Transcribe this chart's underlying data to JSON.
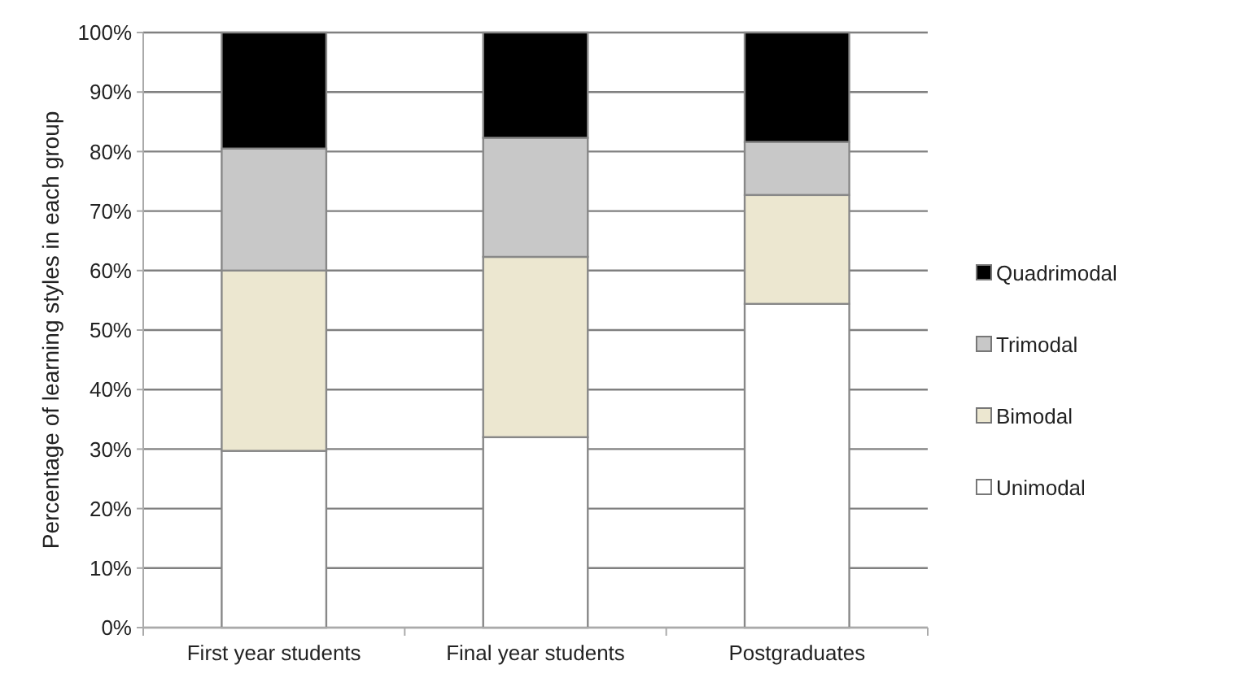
{
  "chart_data": {
    "type": "bar",
    "stacked": true,
    "ylabel": "Percentage of learning styles in each group",
    "categories": [
      "First year students",
      "Final year students",
      "Postgraduates"
    ],
    "series": [
      {
        "name": "Unimodal",
        "color": "#ffffff",
        "values": [
          29.7,
          32,
          54.4
        ]
      },
      {
        "name": "Bimodal",
        "color": "#ece7d0",
        "values": [
          30.3,
          30.3,
          18.3
        ]
      },
      {
        "name": "Trimodal",
        "color": "#c8c8c8",
        "values": [
          20.5,
          20,
          8.9
        ]
      },
      {
        "name": "Quadrimodal",
        "color": "#000000",
        "values": [
          19.5,
          17.7,
          18.4
        ]
      }
    ],
    "ylim": [
      0,
      100
    ],
    "yticks": [
      {
        "value": 0,
        "label": "0%"
      },
      {
        "value": 10,
        "label": "10%"
      },
      {
        "value": 20,
        "label": "20%"
      },
      {
        "value": 30,
        "label": "30%"
      },
      {
        "value": 40,
        "label": "40%"
      },
      {
        "value": 50,
        "label": "50%"
      },
      {
        "value": 60,
        "label": "60%"
      },
      {
        "value": 70,
        "label": "70%"
      },
      {
        "value": 80,
        "label": "80%"
      },
      {
        "value": 90,
        "label": "90%"
      },
      {
        "value": 100,
        "label": "100%"
      }
    ],
    "grid": "y",
    "legend": "right"
  }
}
